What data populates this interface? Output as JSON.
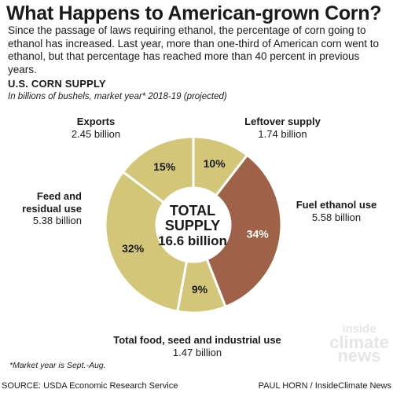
{
  "title": "What Happens to American-grown Corn?",
  "intro": "Since the passage of laws requiring ethanol, the percentage of corn going to ethanol has increased. Last year, more than one-third of American corn went to ethanol, but that percentage has reached more than 40 percent in previous years.",
  "section_heading": "U.S. CORN SUPPLY",
  "subheading": "In billions of bushels, market year* 2018-19 (projected)",
  "center_label": {
    "line1": "TOTAL",
    "line2": "SUPPLY",
    "line3": "16.6 billion"
  },
  "labels": {
    "leftover": {
      "name": "Leftover supply",
      "value": "1.74 billion"
    },
    "fuel": {
      "name": "Fuel ethanol use",
      "value": "5.58 billion"
    },
    "food": {
      "name": "Total food, seed and industrial use",
      "value": "1.47 billion"
    },
    "feed": {
      "name_line1": "Feed and",
      "name_line2": "residual use",
      "value": "5.38 billion"
    },
    "exports": {
      "name": "Exports",
      "value": "2.45 billion"
    }
  },
  "footnote": "*Market year is Sept.-Aug.",
  "source": "SOURCE: USDA Economic Research Service",
  "credit": "PAUL HORN / InsideClimate News",
  "watermark": {
    "line1": "inside",
    "line2": "climate",
    "line3": "news"
  },
  "colors": {
    "tan": "#d4c679",
    "ethanol": "#9f6148",
    "separator": "#ffffff",
    "text_dark": "#1a1a1a",
    "text_light": "#ffffff"
  },
  "chart_data": {
    "type": "pie",
    "donut": true,
    "units": "billions of bushels",
    "slices": [
      {
        "name": "Leftover supply",
        "value": 1.74,
        "label": "10%"
      },
      {
        "name": "Fuel ethanol use",
        "value": 5.58,
        "label": "34%"
      },
      {
        "name": "Total food, seed and industrial use",
        "value": 1.47,
        "label": "9%"
      },
      {
        "name": "Feed and residual use",
        "value": 5.38,
        "label": "32%"
      },
      {
        "name": "Exports",
        "value": 2.45,
        "label": "15%"
      }
    ]
  }
}
